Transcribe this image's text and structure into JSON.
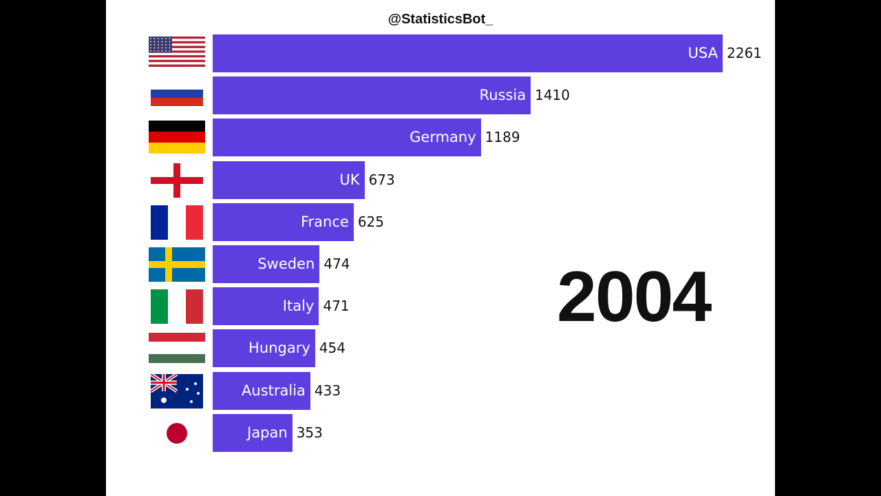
{
  "title": "@StatisticsBot_",
  "year": "2004",
  "colors": {
    "bar": "#5f3ee0"
  },
  "chart_data": {
    "type": "bar",
    "orientation": "horizontal",
    "title": "@StatisticsBot_",
    "annotation": "2004",
    "categories": [
      "USA",
      "Russia",
      "Germany",
      "UK",
      "France",
      "Sweden",
      "Italy",
      "Hungary",
      "Australia",
      "Japan"
    ],
    "values": [
      2261,
      1410,
      1189,
      673,
      625,
      474,
      471,
      454,
      433,
      353
    ],
    "flags": [
      "usa-flag",
      "russia-flag",
      "germany-flag",
      "england-flag",
      "france-flag",
      "sweden-flag",
      "italy-flag",
      "hungary-flag",
      "australia-flag",
      "japan-flag"
    ],
    "xlim": [
      0,
      2261
    ]
  }
}
